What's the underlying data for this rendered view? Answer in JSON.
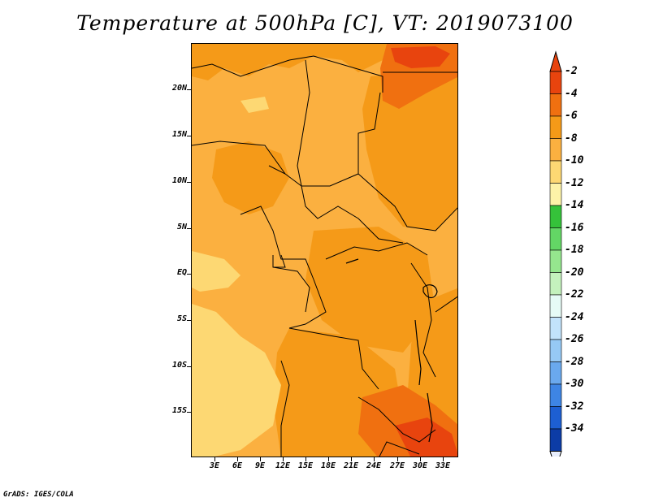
{
  "title": "Temperature at 500hPa [C], VT: 2019073100",
  "lat_labels": [
    "20N",
    "15N",
    "10N",
    "5N",
    "EQ",
    "5S",
    "10S",
    "15S"
  ],
  "lon_labels": [
    "3E",
    "6E",
    "9E",
    "12E",
    "15E",
    "18E",
    "21E",
    "24E",
    "27E",
    "30E",
    "33E"
  ],
  "colorbar": {
    "labels": [
      "-2",
      "-4",
      "-6",
      "-8",
      "-10",
      "-12",
      "-14",
      "-16",
      "-18",
      "-20",
      "-22",
      "-24",
      "-26",
      "-28",
      "-30",
      "-32",
      "-34"
    ],
    "colors": [
      "#e8440e",
      "#f07010",
      "#f59a18",
      "#fbb040",
      "#fdd873",
      "#fdf3a8",
      "#35c23a",
      "#63d665",
      "#95e68e",
      "#c4f2bd",
      "#e6fbf6",
      "#c2e3fb",
      "#96c9f5",
      "#6aa9ee",
      "#3e85e4",
      "#1d5fd2",
      "#0c3ca6"
    ],
    "top_color": "#e8440e",
    "bottom_color": "#0a1c78"
  },
  "credit": "GrADS: IGES/COLA"
}
